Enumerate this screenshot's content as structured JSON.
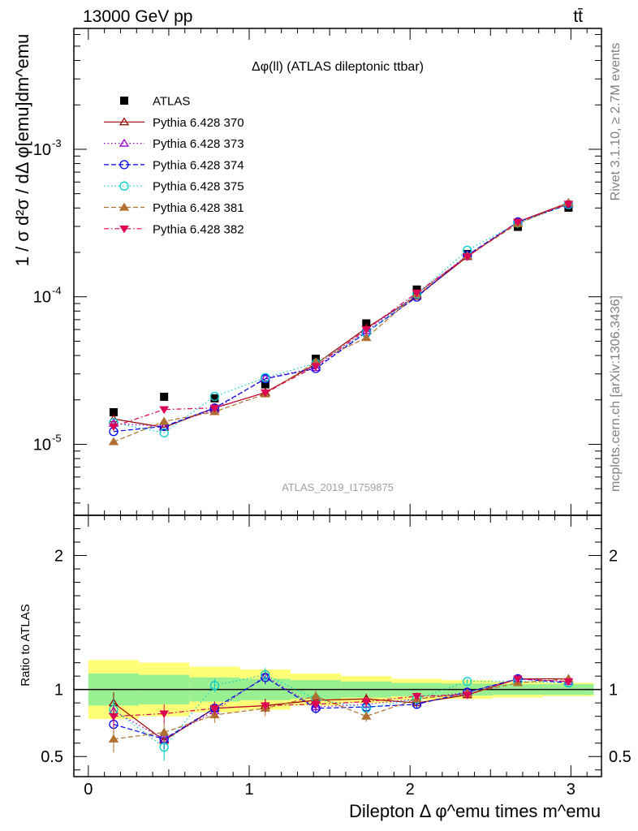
{
  "header": {
    "left": "13000 GeV pp",
    "right": "tt̄"
  },
  "side_labels": {
    "rivet": "Rivet 3.1.10, ≥ 2.7M events",
    "mcplots": "mcplots.cern.ch [arXiv:1306.3436]"
  },
  "chart_data": {
    "type": "scatter",
    "title": "Δφ(ll) (ATLAS dileptonic ttbar)",
    "analysis": "ATLAS_2019_I1759875",
    "xlabel": "Dilepton Δ φ^emu times m^emu",
    "ylabel": "1 / σ  d²σ / dΔ φ[emu]dm^emu",
    "ratio_ylabel": "Ratio to ATLAS",
    "xlim": [
      -0.09,
      3.19
    ],
    "ylim": [
      3.3e-06,
      0.0066
    ],
    "yscale": "log",
    "ratio_ylim": [
      0.35,
      2.3
    ],
    "x_ticks": [
      "0",
      "1",
      "2",
      "3"
    ],
    "y_ticks": [
      {
        "mant": "10",
        "exp": "-5"
      },
      {
        "mant": "10",
        "exp": "-4"
      },
      {
        "mant": "10",
        "exp": "-3"
      }
    ],
    "ratio_ticks": [
      "0.5",
      "1",
      "2"
    ],
    "x": [
      0.157,
      0.471,
      0.785,
      1.1,
      1.414,
      1.728,
      2.042,
      2.356,
      2.67,
      2.985
    ],
    "data": {
      "name": "ATLAS",
      "values": [
        1.65e-05,
        2.1e-05,
        2.05e-05,
        2.55e-05,
        3.8e-05,
        6.6e-05,
        0.000112,
        0.000195,
        0.000298,
        0.000402
      ]
    },
    "band_edges": [
      0.0,
      0.314,
      0.628,
      0.942,
      1.257,
      1.571,
      1.885,
      2.199,
      2.513,
      2.827,
      3.142
    ],
    "band_inner": [
      0.12,
      0.11,
      0.09,
      0.08,
      0.07,
      0.06,
      0.05,
      0.045,
      0.04,
      0.04
    ],
    "band_outer": [
      0.22,
      0.2,
      0.17,
      0.15,
      0.12,
      0.1,
      0.08,
      0.07,
      0.06,
      0.05
    ],
    "legend_position": "top-left",
    "series": [
      {
        "name": "Pythia 6.428 370",
        "color": "#990000",
        "marker": "tri-open",
        "dash": "",
        "ratio": [
          0.9,
          0.62,
          0.86,
          0.88,
          0.92,
          0.93,
          0.9,
          0.96,
          1.08,
          1.08
        ],
        "err": [
          0.08,
          0.07,
          0.05,
          0.05,
          0.04,
          0.04,
          0.03,
          0.02,
          0.02,
          0.02
        ]
      },
      {
        "name": "Pythia 6.428 373",
        "color": "#9900cc",
        "marker": "tri-open",
        "dash": "1.5,3",
        "ratio": [
          0.84,
          0.63,
          0.84,
          1.1,
          0.87,
          0.89,
          0.93,
          0.98,
          1.08,
          1.06
        ],
        "err": [
          0.08,
          0.07,
          0.05,
          0.05,
          0.04,
          0.04,
          0.03,
          0.02,
          0.02,
          0.02
        ]
      },
      {
        "name": "Pythia 6.428 374",
        "color": "#0000ee",
        "marker": "circ-open",
        "dash": "6,3",
        "ratio": [
          0.74,
          0.63,
          0.86,
          1.09,
          0.86,
          0.87,
          0.89,
          0.98,
          1.08,
          1.05
        ],
        "err": [
          0.08,
          0.07,
          0.05,
          0.05,
          0.04,
          0.04,
          0.03,
          0.02,
          0.02,
          0.02
        ]
      },
      {
        "name": "Pythia 6.428 375",
        "color": "#00cccc",
        "marker": "circ-open",
        "dash": "1.5,3",
        "ratio": [
          0.85,
          0.57,
          1.03,
          1.11,
          0.93,
          0.86,
          0.93,
          1.06,
          1.06,
          1.05
        ],
        "err": [
          0.08,
          0.1,
          0.05,
          0.05,
          0.04,
          0.04,
          0.03,
          0.02,
          0.02,
          0.02
        ]
      },
      {
        "name": "Pythia 6.428 381",
        "color": "#b07030",
        "marker": "tri-fill",
        "dash": "6,3",
        "ratio": [
          0.63,
          0.68,
          0.81,
          0.86,
          0.95,
          0.8,
          0.93,
          0.97,
          1.05,
          1.08
        ],
        "err": [
          0.1,
          0.08,
          0.06,
          0.06,
          0.05,
          0.04,
          0.03,
          0.02,
          0.02,
          0.02
        ]
      },
      {
        "name": "Pythia 6.428 382",
        "color": "#dd0055",
        "marker": "tridown-fill",
        "dash": "6,3,1.5,3",
        "ratio": [
          0.8,
          0.82,
          0.86,
          0.88,
          0.89,
          0.91,
          0.95,
          0.96,
          1.08,
          1.06
        ],
        "err": [
          0.08,
          0.07,
          0.05,
          0.05,
          0.04,
          0.04,
          0.03,
          0.02,
          0.02,
          0.02
        ]
      }
    ]
  }
}
